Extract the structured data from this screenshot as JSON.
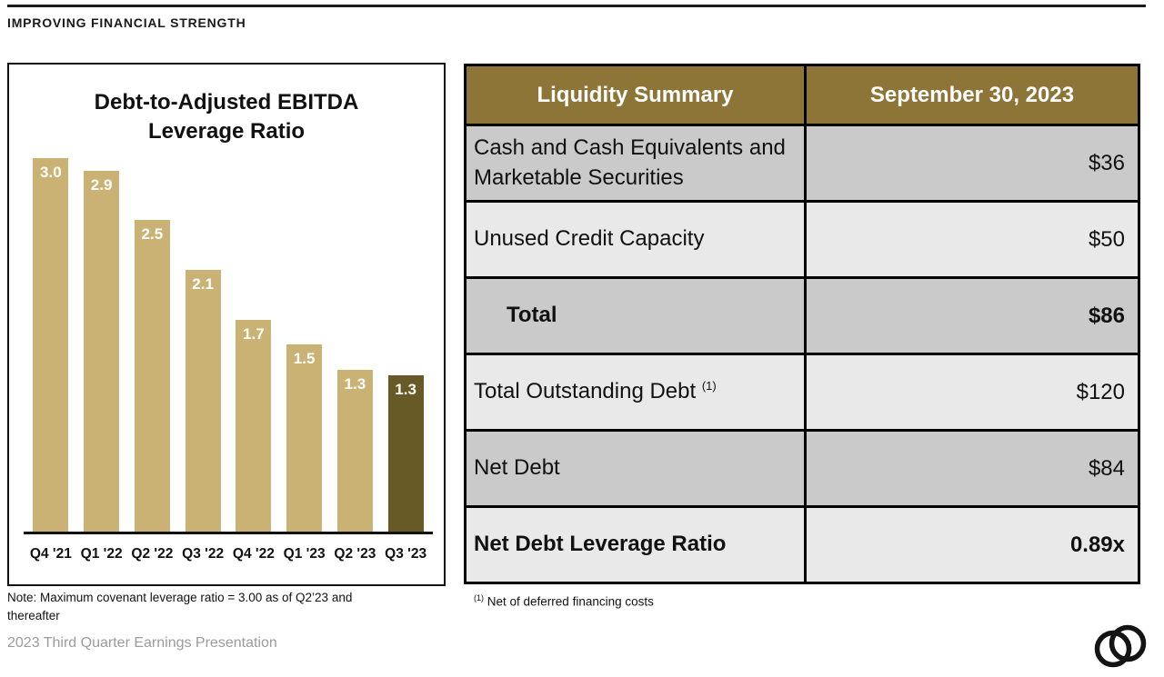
{
  "page": {
    "heading": "IMPROVING FINANCIAL STRENGTH",
    "footer": "2023 Third Quarter Earnings Presentation"
  },
  "chart_data": {
    "type": "bar",
    "title_lines": [
      "Debt-to-Adjusted EBITDA",
      "Leverage Ratio"
    ],
    "categories": [
      "Q4 '21",
      "Q1 '22",
      "Q2 '22",
      "Q3 '22",
      "Q4 '22",
      "Q1 '23",
      "Q2 '23",
      "Q3 '23"
    ],
    "values": [
      3.0,
      2.9,
      2.5,
      2.1,
      1.7,
      1.5,
      1.3,
      1.3
    ],
    "ylim": [
      0,
      3.0
    ],
    "grid": "off",
    "legend": "none",
    "bar_color": "#C9B273",
    "highlight_color": "#685A26",
    "highlight_index": 7,
    "note": "Note: Maximum covenant leverage ratio = 3.00 as of Q2’23 and thereafter"
  },
  "table": {
    "header": {
      "col1": "Liquidity Summary",
      "col2": "September 30, 2023"
    },
    "header_bg": "#8C7536",
    "dark_row_bg": "#CACACA",
    "light_row_bg": "#E9E9E9",
    "rows": [
      {
        "label": "Cash and Cash Equivalents and Marketable Securities",
        "sup": "",
        "value": "$36",
        "bold": false,
        "indent": false,
        "shade": "dark"
      },
      {
        "label": "Unused Credit Capacity",
        "sup": "",
        "value": "$50",
        "bold": false,
        "indent": false,
        "shade": "light"
      },
      {
        "label": "Total",
        "sup": "",
        "value": "$86",
        "bold": true,
        "indent": true,
        "shade": "dark"
      },
      {
        "label": "Total Outstanding Debt",
        "sup": "(1)",
        "value": "$120",
        "bold": false,
        "indent": false,
        "shade": "light"
      },
      {
        "label": "Net Debt",
        "sup": "",
        "value": "$84",
        "bold": false,
        "indent": false,
        "shade": "dark"
      },
      {
        "label": "Net Debt Leverage Ratio",
        "sup": "",
        "value": "0.89x",
        "bold": true,
        "indent": false,
        "shade": "light"
      }
    ],
    "footnote_sup": "(1)",
    "footnote_text": "Net of deferred financing costs"
  }
}
